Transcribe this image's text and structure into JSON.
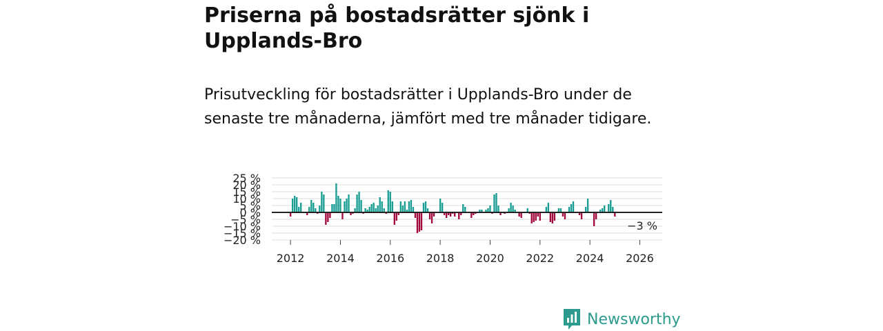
{
  "title": "Priserna på bostadsrätter sjönk i Upplands-Bro",
  "subtitle": "Prisutveckling för bostadsrätter i Upplands-Bro under de senaste tre månaderna, jämfört med tre månader tidigare.",
  "brand": {
    "name": "Newsworthy",
    "icon": "newsworthy-logo-icon"
  },
  "colors": {
    "positive": "#1a9e94",
    "negative": "#a3093d",
    "grid": "#dddddd",
    "zero_line": "#222222",
    "brand": "#2c9a8c"
  },
  "chart_data": {
    "type": "bar",
    "title": "Priserna på bostadsrätter sjönk i Upplands-Bro",
    "xlabel": "",
    "ylabel": "",
    "ylim": [
      -20,
      25
    ],
    "y_ticks": [
      25,
      20,
      15,
      10,
      5,
      0,
      -5,
      -10,
      -15,
      -20
    ],
    "y_tick_labels": [
      "25 %",
      "20 %",
      "15 %",
      "10 %",
      "5 %",
      "0 %",
      "−5 %",
      "−10 %",
      "−15 %",
      "−20 %"
    ],
    "x_range": [
      2011.25,
      2026.9
    ],
    "x_ticks": [
      2012,
      2014,
      2016,
      2018,
      2020,
      2022,
      2024,
      2026
    ],
    "grid": true,
    "last_value_label": "−3 %",
    "start": 2012.0,
    "step_months": 1,
    "values": [
      -3,
      10,
      12,
      11,
      4,
      7,
      0,
      0,
      -2,
      4,
      9,
      7,
      3,
      -1,
      5,
      15,
      13,
      -9,
      -7,
      -4,
      6,
      6,
      21,
      12,
      10,
      -5,
      8,
      10,
      13,
      -2,
      -1,
      3,
      13,
      15,
      9,
      -1,
      3,
      2,
      4,
      6,
      7,
      3,
      5,
      11,
      8,
      3,
      -1,
      16,
      15,
      8,
      -9,
      -6,
      -2,
      8,
      5,
      8,
      2,
      8,
      9,
      4,
      -4,
      -15,
      -14,
      -13,
      7,
      8,
      3,
      -5,
      -8,
      -3,
      0,
      0,
      10,
      7,
      -2,
      -4,
      -2,
      -3,
      -1,
      -3,
      0,
      -5,
      -2,
      6,
      4,
      0,
      0,
      -4,
      -2,
      -1,
      0,
      2,
      2,
      0,
      2,
      3,
      5,
      -1,
      13,
      14,
      5,
      -2,
      0,
      -1,
      0,
      3,
      7,
      5,
      2,
      0,
      -3,
      -4,
      0,
      0,
      3,
      -1,
      -8,
      -7,
      -6,
      -3,
      -6,
      0,
      0,
      4,
      7,
      -7,
      -8,
      -6,
      0,
      3,
      3,
      -3,
      -5,
      0,
      4,
      6,
      8,
      0,
      0,
      -2,
      -5,
      0,
      4,
      10,
      0,
      0,
      -10,
      -5,
      0,
      2,
      3,
      5,
      0,
      6,
      9,
      4,
      -3
    ]
  }
}
